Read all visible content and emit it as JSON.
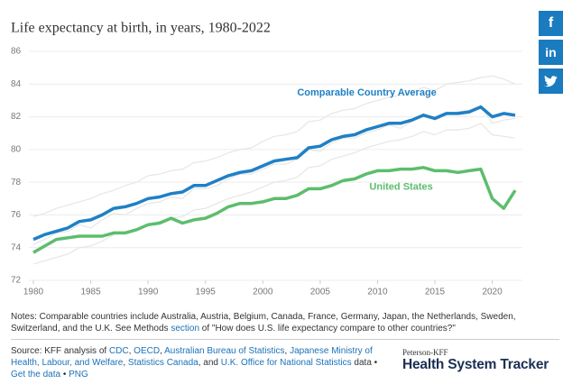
{
  "chart_data": {
    "type": "line",
    "title": "Life expectancy at birth, in years, 1980-2022",
    "x": [
      1980,
      1981,
      1982,
      1983,
      1984,
      1985,
      1986,
      1987,
      1988,
      1989,
      1990,
      1991,
      1992,
      1993,
      1994,
      1995,
      1996,
      1997,
      1998,
      1999,
      2000,
      2001,
      2002,
      2003,
      2004,
      2005,
      2006,
      2007,
      2008,
      2009,
      2010,
      2011,
      2012,
      2013,
      2014,
      2015,
      2016,
      2017,
      2018,
      2019,
      2020,
      2021,
      2022
    ],
    "xlim": [
      1980,
      2022
    ],
    "xticks": [
      1980,
      1985,
      1990,
      1995,
      2000,
      2005,
      2010,
      2015,
      2020
    ],
    "ylim": [
      72,
      86
    ],
    "yticks": [
      72,
      74,
      76,
      78,
      80,
      82,
      84,
      86
    ],
    "grid": true,
    "series": [
      {
        "color": "#e6e6e6",
        "values": [
          75.9,
          76.1,
          76.4,
          76.6,
          76.8,
          77.0,
          77.3,
          77.5,
          77.8,
          78.0,
          78.4,
          78.5,
          78.7,
          78.8,
          79.2,
          79.3,
          79.5,
          79.8,
          80.0,
          80.1,
          80.5,
          80.8,
          80.9,
          81.1,
          81.7,
          81.8,
          82.2,
          82.4,
          82.5,
          82.8,
          83.0,
          83.2,
          83.3,
          83.5,
          83.8,
          83.6,
          84.0,
          84.1,
          84.2,
          84.4,
          84.5,
          84.3,
          84.0
        ]
      },
      {
        "color": "#e6e6e6",
        "values": [
          73.0,
          73.2,
          73.4,
          73.6,
          74.0,
          74.1,
          74.4,
          74.8,
          74.9,
          75.1,
          75.4,
          75.6,
          75.8,
          75.9,
          76.3,
          76.4,
          76.7,
          77.0,
          77.2,
          77.4,
          77.7,
          78.0,
          78.1,
          78.3,
          78.9,
          79.0,
          79.4,
          79.6,
          79.8,
          80.1,
          80.3,
          80.5,
          80.6,
          80.8,
          81.1,
          80.9,
          81.2,
          81.2,
          81.3,
          81.6,
          80.9,
          80.8,
          80.7
        ]
      },
      {
        "color": "#e6e6e6",
        "values": [
          74.2,
          74.5,
          74.9,
          75.0,
          75.4,
          75.2,
          75.7,
          76.1,
          76.0,
          76.4,
          76.7,
          76.8,
          77.1,
          77.0,
          77.6,
          77.6,
          77.8,
          78.2,
          78.5,
          78.5,
          78.8,
          79.1,
          79.1,
          79.4,
          80.0,
          79.9,
          80.4,
          80.7,
          80.7,
          81.0,
          81.2,
          81.5,
          81.3,
          81.7,
          82.2,
          81.8,
          82.1,
          82.3,
          82.4,
          82.7,
          81.6,
          81.8,
          81.9
        ]
      },
      {
        "name": "Comparable Country Average",
        "color": "#1f80c5",
        "values": [
          74.5,
          74.8,
          75.0,
          75.2,
          75.6,
          75.7,
          76.0,
          76.4,
          76.5,
          76.7,
          77.0,
          77.1,
          77.3,
          77.4,
          77.8,
          77.8,
          78.1,
          78.4,
          78.6,
          78.7,
          79.0,
          79.3,
          79.4,
          79.5,
          80.1,
          80.2,
          80.6,
          80.8,
          80.9,
          81.2,
          81.4,
          81.6,
          81.6,
          81.8,
          82.1,
          81.9,
          82.2,
          82.2,
          82.3,
          82.6,
          82.0,
          82.2,
          82.1
        ]
      },
      {
        "name": "United States",
        "color": "#5dbd6d",
        "values": [
          73.7,
          74.1,
          74.5,
          74.6,
          74.7,
          74.7,
          74.7,
          74.9,
          74.9,
          75.1,
          75.4,
          75.5,
          75.8,
          75.5,
          75.7,
          75.8,
          76.1,
          76.5,
          76.7,
          76.7,
          76.8,
          77.0,
          77.0,
          77.2,
          77.6,
          77.6,
          77.8,
          78.1,
          78.2,
          78.5,
          78.7,
          78.7,
          78.8,
          78.8,
          78.9,
          78.7,
          78.7,
          78.6,
          78.7,
          78.8,
          77.0,
          76.4,
          77.5
        ]
      }
    ]
  },
  "notes": [
    {
      "text": "Notes: Comparable countries include Australia, Austria, Belgium, Canada, France, Germany, Japan, the Netherlands, Sweden, Switzerland, and the U.K. See Methods ",
      "link": false
    },
    {
      "text": "section",
      "link": true
    },
    {
      "text": " of \"How does U.S. life expectancy compare to other countries?\"",
      "link": false
    }
  ],
  "source": [
    {
      "text": "Source: KFF analysis of ",
      "link": false
    },
    {
      "text": "CDC",
      "link": true
    },
    {
      "text": ", ",
      "link": false
    },
    {
      "text": "OECD",
      "link": true
    },
    {
      "text": ", ",
      "link": false
    },
    {
      "text": "Australian Bureau of Statistics",
      "link": true
    },
    {
      "text": ", ",
      "link": false
    },
    {
      "text": "Japanese Ministry of Health, Labour, and Welfare",
      "link": true
    },
    {
      "text": ", ",
      "link": false
    },
    {
      "text": "Statistics Canada",
      "link": true
    },
    {
      "text": ", and ",
      "link": false
    },
    {
      "text": "U.K. Office for National Statistics",
      "link": true
    },
    {
      "text": " data • ",
      "link": false
    },
    {
      "text": "Get the data",
      "link": true
    },
    {
      "text": " • ",
      "link": false
    },
    {
      "text": "PNG",
      "link": true
    }
  ],
  "branding": {
    "top": "Peterson-KFF",
    "main": "Health System Tracker"
  },
  "share": {
    "facebook": "f",
    "linkedin": "in"
  }
}
